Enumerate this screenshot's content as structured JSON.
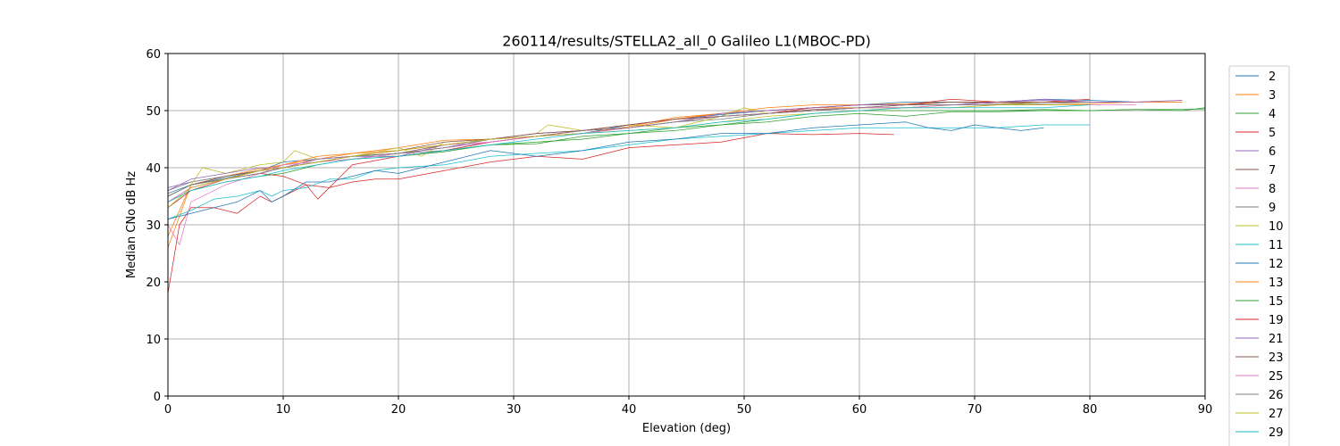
{
  "chart_data": {
    "type": "line",
    "title": "260114/results/STELLA2_all_0 Galileo L1(MBOC-PD)",
    "xlabel": "Elevation (deg)",
    "ylabel": "Median CNo dB Hz",
    "xlim": [
      0,
      90
    ],
    "ylim": [
      0,
      60
    ],
    "xticks": [
      0,
      10,
      20,
      30,
      40,
      50,
      60,
      70,
      80,
      90
    ],
    "yticks": [
      0,
      10,
      20,
      30,
      40,
      50,
      60
    ],
    "grid": true,
    "legend_position": "right (clipped at bottom)",
    "series": [
      {
        "name": "2",
        "color": "#1f77b4",
        "x": [
          0,
          2,
          5,
          8,
          10,
          13,
          16,
          20,
          24,
          28,
          32,
          36,
          40,
          44,
          48,
          52,
          56,
          60,
          64,
          68,
          72,
          76,
          80,
          84
        ],
        "y": [
          35.5,
          37,
          38.2,
          39.5,
          41,
          41.5,
          42,
          42.5,
          43.5,
          44.5,
          45.5,
          46,
          47.5,
          48.5,
          49.3,
          50,
          50.5,
          51,
          51.5,
          51.5,
          51.5,
          52,
          51.8,
          51.5
        ]
      },
      {
        "name": "3",
        "color": "#ff7f0e",
        "x": [
          0,
          2,
          5,
          8,
          10,
          13,
          16,
          20,
          24,
          28,
          32,
          36,
          40,
          44,
          48,
          52,
          56,
          60,
          64,
          68,
          72,
          76,
          80,
          84,
          88
        ],
        "y": [
          28,
          37,
          38.5,
          39.8,
          40.5,
          41.5,
          42.5,
          43.5,
          44.8,
          45,
          45.5,
          46,
          47.2,
          48.8,
          49.5,
          50.5,
          51,
          51,
          51.2,
          51.5,
          51.5,
          51.5,
          51.5,
          51.5,
          51.8
        ]
      },
      {
        "name": "4",
        "color": "#2ca02c",
        "x": [
          0,
          2,
          5,
          8,
          10,
          13,
          16,
          20,
          24,
          28,
          32,
          36,
          40,
          44,
          48,
          52,
          56,
          60,
          64,
          68,
          72,
          76,
          80,
          84,
          88,
          90
        ],
        "y": [
          35,
          37,
          38,
          39,
          40,
          41,
          42,
          42,
          42.8,
          44,
          44.2,
          45.5,
          46,
          46.5,
          47.5,
          48,
          49,
          49.5,
          49,
          49.8,
          49.8,
          50,
          50,
          50.2,
          50,
          50.5
        ]
      },
      {
        "name": "5",
        "color": "#d62728",
        "x": [
          0,
          1,
          2,
          4,
          6,
          8,
          9,
          10,
          12,
          14,
          16,
          18,
          20,
          24,
          28,
          32,
          36,
          40,
          44,
          48,
          52,
          56,
          60,
          63
        ],
        "y": [
          18,
          30,
          33,
          33,
          32,
          35,
          34,
          35,
          37,
          36.5,
          37.5,
          38,
          38,
          39.5,
          41,
          42,
          41.5,
          43.5,
          44,
          44.5,
          46,
          45.8,
          46,
          45.8
        ]
      },
      {
        "name": "6",
        "color": "#9467bd",
        "x": [
          0,
          2,
          5,
          8,
          10,
          13,
          16,
          20,
          24,
          28,
          32,
          36,
          40,
          44,
          48,
          52,
          56,
          60,
          64,
          68,
          72,
          76,
          80,
          84,
          88
        ],
        "y": [
          36.5,
          37.5,
          38.5,
          39.5,
          40,
          41.5,
          42,
          42.5,
          43.5,
          45,
          46,
          46.5,
          47.5,
          48.5,
          49.5,
          50,
          50.5,
          51,
          51,
          51,
          51.5,
          51.8,
          51.5,
          51.5,
          51.5
        ]
      },
      {
        "name": "7",
        "color": "#8c564b",
        "x": [
          0,
          2,
          5,
          8,
          10,
          13,
          16,
          20,
          24,
          28,
          32,
          36,
          40,
          44,
          48,
          52,
          56,
          60,
          64,
          68,
          72,
          76,
          80
        ],
        "y": [
          34,
          36.5,
          38,
          39.5,
          40,
          41,
          42,
          42.5,
          44,
          45,
          45.5,
          46.5,
          47,
          48,
          49,
          49.5,
          50.2,
          50.5,
          51,
          51.5,
          51.2,
          51.5,
          51.5
        ]
      },
      {
        "name": "8",
        "color": "#e377c2",
        "x": [
          0,
          1,
          2,
          5,
          8,
          10,
          13,
          16,
          20,
          24,
          28,
          32,
          36,
          40,
          44,
          48,
          52,
          56,
          60,
          64,
          68,
          72,
          76,
          80,
          84
        ],
        "y": [
          30,
          26.5,
          34,
          37,
          39,
          40,
          41,
          42,
          43,
          44,
          44.5,
          45.5,
          46,
          47,
          48,
          49,
          49.5,
          50,
          50.5,
          50.5,
          50.5,
          51,
          51,
          51,
          51
        ]
      },
      {
        "name": "9",
        "color": "#7f7f7f",
        "x": [
          0,
          2,
          5,
          8,
          10,
          13,
          16,
          20,
          24,
          28,
          32,
          36,
          40,
          44,
          48,
          52,
          56,
          60,
          64,
          68,
          72,
          76,
          80,
          84
        ],
        "y": [
          36,
          37.5,
          38.5,
          39.5,
          40,
          41,
          41.5,
          42.5,
          43,
          44.5,
          45.5,
          46,
          47,
          48,
          48.5,
          49.5,
          50,
          50.5,
          50.5,
          51,
          51,
          51.5,
          51.5,
          51.5
        ]
      },
      {
        "name": "10",
        "color": "#bcbd22",
        "x": [
          0,
          2,
          3,
          5,
          8,
          10,
          11,
          13,
          16,
          20,
          22,
          24,
          28,
          32,
          33,
          36,
          40,
          44,
          48,
          50,
          52,
          56,
          60,
          64,
          68,
          72,
          76,
          80
        ],
        "y": [
          35,
          37,
          40,
          39,
          40.5,
          41,
          43,
          41.5,
          42,
          43.5,
          42,
          44.5,
          45,
          46,
          47.5,
          46.5,
          47.5,
          47,
          49,
          50.5,
          49.5,
          50,
          50.5,
          50.5,
          51,
          51,
          51.5,
          51.5
        ]
      },
      {
        "name": "11",
        "color": "#17becf",
        "x": [
          0,
          2,
          4,
          6,
          8,
          9,
          10,
          12,
          14,
          16,
          18,
          20,
          24,
          28,
          32,
          36,
          40,
          44,
          48,
          52,
          56,
          60,
          64,
          68,
          72,
          76,
          80
        ],
        "y": [
          31,
          32.5,
          34.5,
          35,
          36,
          35,
          36,
          36.5,
          38,
          38,
          39.5,
          40,
          40.5,
          42,
          42.5,
          43,
          44,
          45,
          45.5,
          46,
          46.5,
          47,
          47,
          47,
          47,
          47.5,
          47.5
        ]
      },
      {
        "name": "12",
        "color": "#1f77b4",
        "x": [
          0,
          2,
          4,
          6,
          8,
          9,
          10,
          12,
          14,
          16,
          18,
          20,
          24,
          28,
          32,
          36,
          40,
          44,
          48,
          52,
          56,
          60,
          64,
          66,
          68,
          70,
          72,
          74,
          76
        ],
        "y": [
          31,
          32,
          33,
          34,
          36,
          34,
          35,
          37.5,
          37.5,
          38.5,
          39.5,
          39,
          41,
          43,
          42,
          43,
          44.5,
          45,
          46,
          46,
          47,
          47.5,
          48,
          47,
          46.5,
          47.5,
          47,
          46.5,
          47
        ]
      },
      {
        "name": "13",
        "color": "#ff7f0e",
        "x": [
          0,
          2,
          5,
          8,
          10,
          13,
          16,
          20,
          24,
          28,
          32,
          36,
          40,
          44,
          48,
          52,
          56,
          60,
          64,
          68,
          72,
          76,
          80,
          84,
          88
        ],
        "y": [
          26,
          37,
          38,
          39.5,
          40.5,
          42,
          42.5,
          43,
          44,
          45,
          45.5,
          46.5,
          47,
          48.5,
          49.5,
          50,
          50.5,
          50.5,
          51,
          51,
          51,
          51,
          51.2,
          51.5,
          51.5
        ]
      },
      {
        "name": "15",
        "color": "#2ca02c",
        "x": [
          0,
          2,
          5,
          8,
          10,
          13,
          16,
          20,
          24,
          28,
          32,
          36,
          40,
          44,
          48,
          52,
          56,
          60,
          64,
          68,
          72,
          76,
          80,
          84,
          88,
          90
        ],
        "y": [
          34,
          36,
          37.5,
          38.5,
          39,
          40.5,
          41.5,
          42,
          43,
          44,
          44.5,
          45,
          46,
          47,
          47.5,
          48.5,
          49.5,
          50,
          50,
          50,
          50,
          50.2,
          50,
          50.2,
          50.2,
          50.3
        ]
      },
      {
        "name": "19",
        "color": "#d62728",
        "x": [
          0,
          2,
          5,
          8,
          10,
          12,
          13,
          16,
          20,
          24,
          28,
          32,
          36,
          40,
          44,
          48,
          52,
          56,
          60,
          64,
          68,
          72,
          76,
          80
        ],
        "y": [
          33,
          36,
          38,
          39,
          38.5,
          37,
          34.5,
          40.5,
          42,
          43,
          44.5,
          45.5,
          46.5,
          47.5,
          48.5,
          49,
          49.5,
          50.5,
          51,
          51,
          52,
          51.5,
          51.5,
          52
        ]
      },
      {
        "name": "21",
        "color": "#9467bd",
        "x": [
          0,
          2,
          5,
          8,
          10,
          13,
          16,
          20,
          24,
          28,
          32,
          36,
          40,
          44,
          48,
          52,
          56,
          60,
          64,
          68,
          72,
          76,
          80,
          84,
          88
        ],
        "y": [
          36,
          38,
          39,
          40,
          40,
          41.5,
          42,
          42,
          44,
          45,
          46,
          46.5,
          47,
          48,
          49.5,
          50,
          50.5,
          51,
          51,
          51,
          51.5,
          52,
          51.5,
          51.5,
          51.8
        ]
      },
      {
        "name": "23",
        "color": "#8c564b",
        "x": [
          0,
          2,
          5,
          8,
          10,
          13,
          16,
          20,
          24,
          28,
          32,
          36,
          40,
          44,
          48,
          52,
          56,
          60,
          64,
          68,
          72,
          76,
          80
        ],
        "y": [
          35,
          37,
          38.5,
          39.5,
          40,
          41,
          42,
          43,
          44.5,
          45,
          46,
          46.5,
          47.5,
          48.5,
          49,
          49.5,
          50,
          50.5,
          51,
          51.5,
          51.5,
          51.5,
          51.5
        ]
      },
      {
        "name": "25",
        "color": "#e377c2",
        "x": [
          0,
          2,
          5,
          8,
          10,
          13,
          16,
          20,
          24,
          28,
          32,
          36,
          40,
          44,
          48,
          52,
          56,
          60,
          64,
          68,
          72,
          76,
          80
        ],
        "y": [
          34,
          36.5,
          38,
          39,
          40.5,
          41,
          41.5,
          42.5,
          43.5,
          44.5,
          45.5,
          46,
          47,
          48,
          49,
          49.5,
          50,
          50.5,
          50.5,
          51,
          51,
          51,
          51
        ]
      },
      {
        "name": "26",
        "color": "#7f7f7f",
        "x": [
          0,
          2,
          5,
          8,
          10,
          13,
          16,
          20,
          24,
          28,
          32,
          36,
          40,
          44,
          48,
          52,
          56,
          60,
          64,
          68,
          72,
          76,
          80
        ],
        "y": [
          35,
          37,
          38,
          39,
          40,
          41,
          42,
          42.5,
          43.5,
          45,
          45.5,
          46.5,
          47,
          48,
          49,
          49.5,
          50,
          50.5,
          51,
          51,
          51,
          51.2,
          51.5
        ]
      },
      {
        "name": "27",
        "color": "#bcbd22",
        "x": [
          0,
          2,
          5,
          8,
          10,
          13,
          16,
          20,
          24,
          28,
          32,
          36,
          40,
          44,
          48,
          52,
          56,
          60,
          64,
          68,
          72,
          76,
          80
        ],
        "y": [
          33,
          36.5,
          38,
          39.5,
          40,
          41,
          42,
          43,
          44,
          45,
          45.5,
          46,
          46.5,
          47,
          48,
          49,
          49.5,
          50,
          50.5,
          50.5,
          51,
          51,
          51
        ]
      },
      {
        "name": "29",
        "color": "#17becf",
        "x": [
          0,
          2,
          5,
          8,
          10,
          13,
          16,
          20,
          24,
          28,
          32,
          36,
          40,
          44,
          48,
          52,
          56,
          60,
          64,
          68,
          72,
          76,
          80
        ],
        "y": [
          34,
          36,
          37.5,
          38.5,
          39.5,
          40.5,
          41.5,
          42,
          43,
          44,
          45,
          46,
          46.5,
          47,
          48,
          48.5,
          49.5,
          50,
          50.5,
          50.5,
          50.5,
          50.5,
          51
        ]
      }
    ]
  }
}
